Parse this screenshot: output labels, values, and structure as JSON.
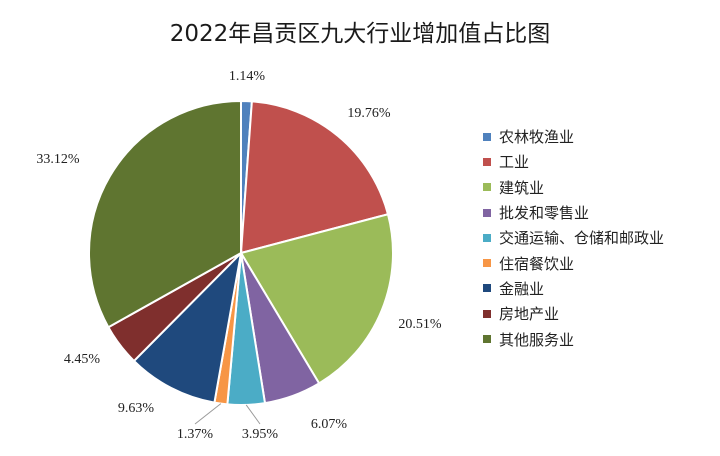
{
  "chart_data": {
    "type": "pie",
    "title": "2022年昌贡区九大行业增加值占比图",
    "slices": [
      {
        "name": "农林牧渔业",
        "value": 1.14,
        "label": "1.14%",
        "color": "#4f81bd"
      },
      {
        "name": "工业",
        "value": 19.76,
        "label": "19.76%",
        "color": "#c0504d"
      },
      {
        "name": "建筑业",
        "value": 20.51,
        "label": "20.51%",
        "color": "#9bbb59"
      },
      {
        "name": "批发和零售业",
        "value": 6.07,
        "label": "6.07%",
        "color": "#8064a2"
      },
      {
        "name": "交通运输、仓储和邮政业",
        "value": 3.95,
        "label": "3.95%",
        "color": "#4bacc6"
      },
      {
        "name": "住宿餐饮业",
        "value": 1.37,
        "label": "1.37%",
        "color": "#f79646"
      },
      {
        "name": "金融业",
        "value": 9.63,
        "label": "9.63%",
        "color": "#1f497d"
      },
      {
        "name": "房地产业",
        "value": 4.45,
        "label": "4.45%",
        "color": "#7f2f2d"
      },
      {
        "name": "其他服务业",
        "value": 33.12,
        "label": "33.12%",
        "color": "#5f7530"
      }
    ],
    "start_angle": "12 o'clock",
    "direction": "clockwise",
    "legend_position": "right"
  }
}
